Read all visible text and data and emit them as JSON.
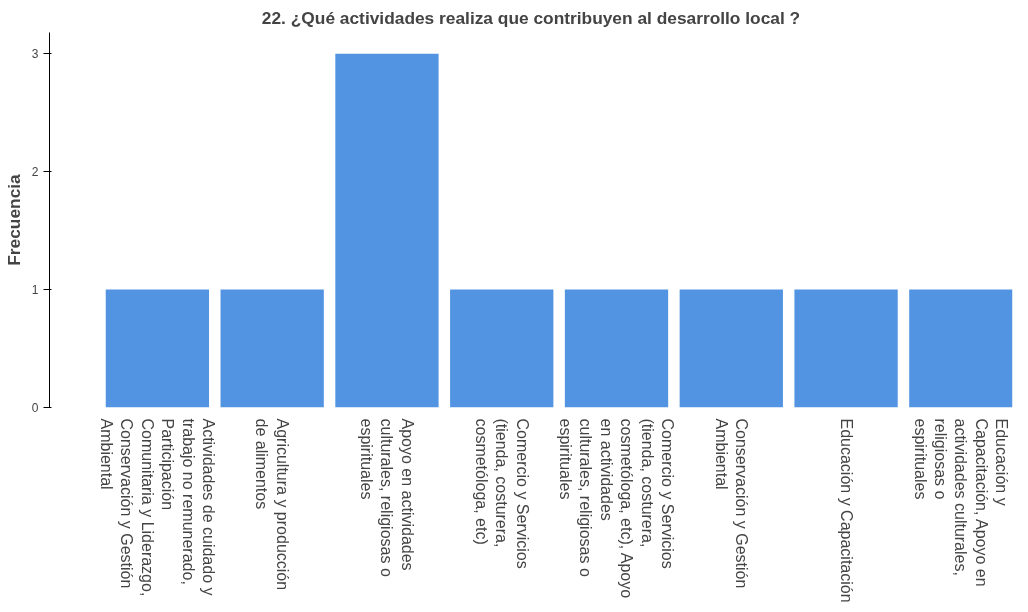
{
  "chart_data": {
    "type": "bar",
    "title": "22. ¿Qué actividades realiza que contribuyen al desarrollo local ?",
    "ylabel": "Frecuencia",
    "categories": [
      "Actividades de cuidado y trabajo no remunerado, Participación Comunitaria y Liderazgo, Conservación y Gestión Ambiental",
      "Agricultura y producción de alimentos",
      "Apoyo en actividades culturales, religiosas o espirituales",
      "Comercio y Servicios (tienda, costurera, cosmetóloga, etc)",
      "Comercio y Servicios (tienda, costurera, cosmetóloga, etc), Apoyo en actividades culturales, religiosas o espirituales",
      "Conservación y Gestión Ambiental",
      "Educación y Capacitación",
      "Educación y Capacitación, Apoyo en actividades culturales, religiosas o espirituales"
    ],
    "values": [
      1,
      1,
      3,
      1,
      1,
      1,
      1,
      1
    ],
    "color": "#5294e2",
    "ylim": [
      0,
      3.18
    ],
    "yticks": [
      0,
      1,
      2,
      3
    ],
    "grid": false
  }
}
